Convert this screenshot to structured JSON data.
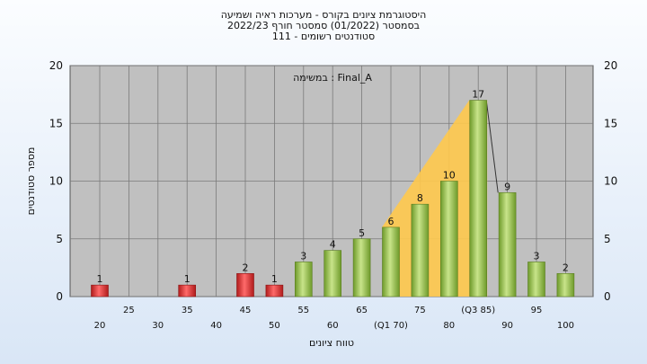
{
  "chart_data": {
    "type": "bar",
    "title_lines": [
      "היסטוגרמת ציונים בקורס - מערכות ראיה ושמיעה",
      "בסמסטר  (01/2022)  סמסטר חורף 2022/23",
      "סטודנטים רשומים - 111"
    ],
    "xlabel": "טווח ציונים",
    "ylabel": "מספר סטודנטים",
    "annotation": "במשימה : Final_A",
    "ylim": [
      0,
      20
    ],
    "yticks": [
      0,
      5,
      10,
      15,
      20
    ],
    "grid": true,
    "categories": [
      20,
      25,
      30,
      35,
      40,
      45,
      50,
      55,
      60,
      65,
      70,
      75,
      80,
      85,
      90,
      95,
      100
    ],
    "x_tick_labels": [
      "20",
      "25",
      "30",
      "35",
      "40",
      "45",
      "50",
      "55",
      "60",
      "65",
      "(Q1 70)",
      "75",
      "80",
      "(Q3 85)",
      "90",
      "95",
      "100"
    ],
    "values": [
      1,
      0,
      0,
      1,
      0,
      2,
      1,
      3,
      4,
      5,
      6,
      8,
      10,
      17,
      9,
      3,
      2
    ],
    "failing_threshold": 55,
    "colors": {
      "fail_bar": "#e03535",
      "pass_bar": "#8cc63e",
      "quartile_band": "#ffc94d",
      "plot_bg": "#c0c0c0",
      "grid": "#7a7a7a"
    }
  }
}
